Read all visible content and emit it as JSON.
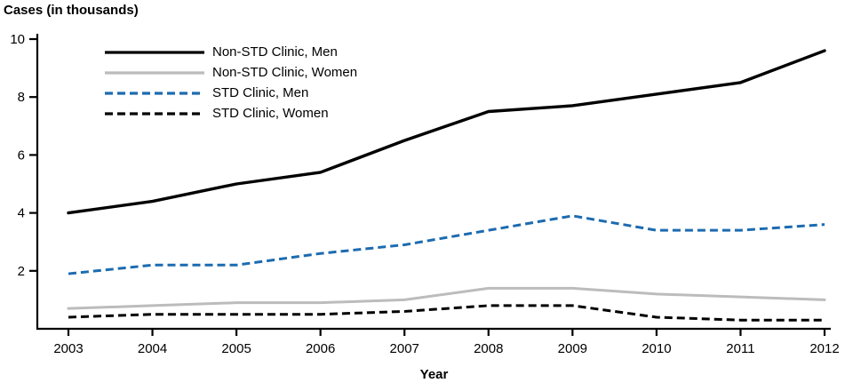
{
  "chart_data": {
    "type": "line",
    "title": "Cases (in thousands)",
    "xlabel": "Year",
    "ylabel": "",
    "x": [
      2003,
      2004,
      2005,
      2006,
      2007,
      2008,
      2009,
      2010,
      2011,
      2012
    ],
    "ylim": [
      0,
      10
    ],
    "yticks": [
      2,
      4,
      6,
      8,
      10
    ],
    "grid": false,
    "legend_position": "top-left",
    "series": [
      {
        "name": "Non-STD Clinic, Men",
        "color": "#000000",
        "style": "solid",
        "values": [
          4.0,
          4.4,
          5.0,
          5.4,
          6.5,
          7.5,
          7.7,
          8.1,
          8.5,
          9.6
        ]
      },
      {
        "name": "Non-STD Clinic, Women",
        "color": "#bcbcbc",
        "style": "solid",
        "values": [
          0.7,
          0.8,
          0.9,
          0.9,
          1.0,
          1.4,
          1.4,
          1.2,
          1.1,
          1.0
        ]
      },
      {
        "name": "STD Clinic, Men",
        "color": "#1c6bb0",
        "style": "dashed",
        "values": [
          1.9,
          2.2,
          2.2,
          2.6,
          2.9,
          3.4,
          3.9,
          3.4,
          3.4,
          3.6
        ]
      },
      {
        "name": "STD Clinic, Women",
        "color": "#000000",
        "style": "dashed",
        "values": [
          0.4,
          0.5,
          0.5,
          0.5,
          0.6,
          0.8,
          0.8,
          0.4,
          0.3,
          0.3
        ]
      }
    ]
  }
}
